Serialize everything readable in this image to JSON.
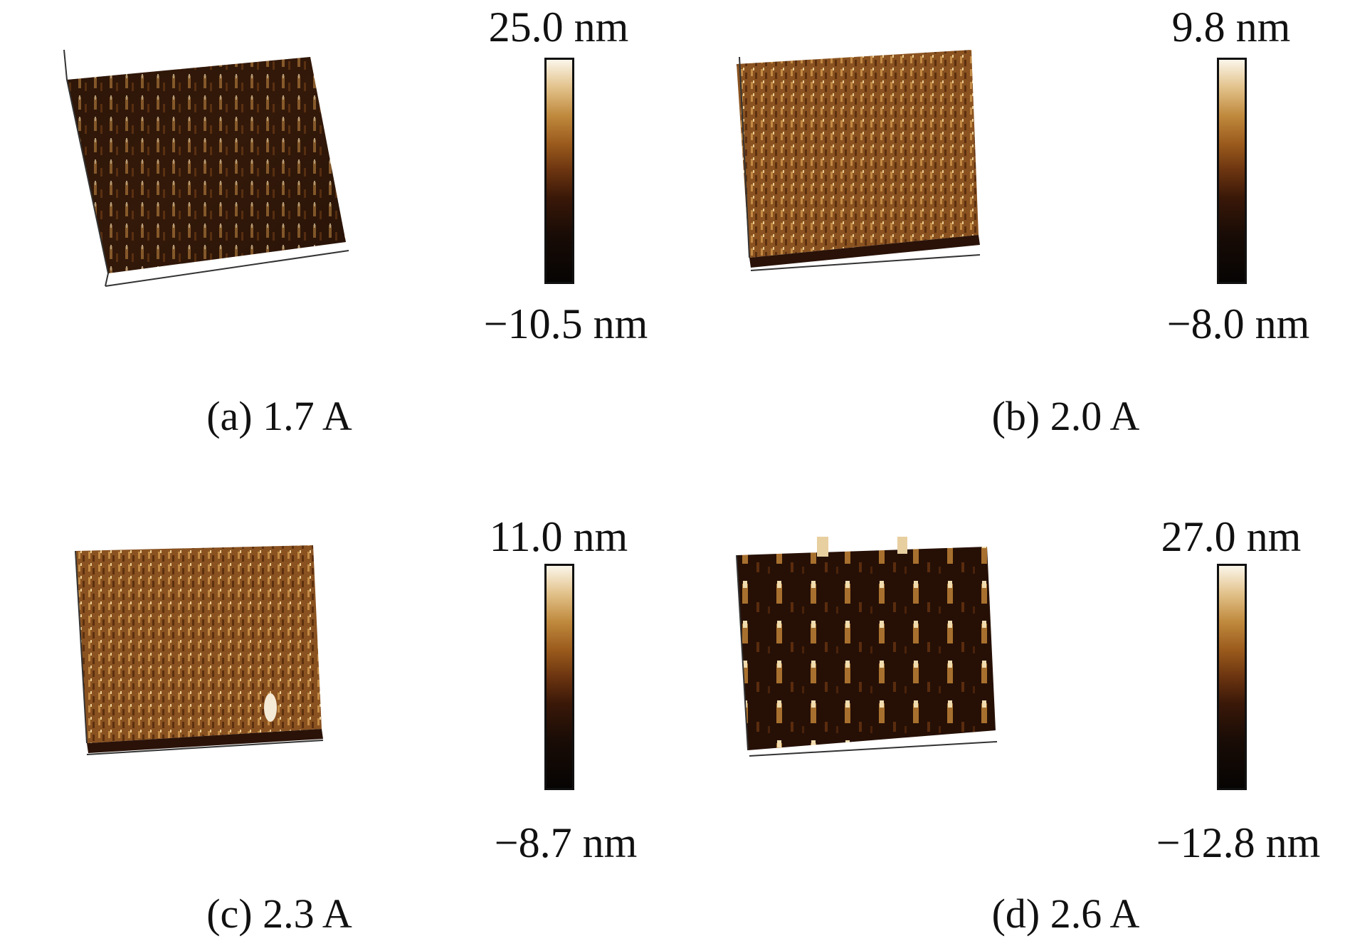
{
  "figure": {
    "panels": [
      {
        "id": "a",
        "caption": "(a) 1.7 A",
        "scale_max": "25.0 nm",
        "scale_min": "−10.5 nm",
        "palette": "dark",
        "peak_density": "high"
      },
      {
        "id": "b",
        "caption": "(b) 2.0 A",
        "scale_max": "9.8 nm",
        "scale_min": "−8.0 nm",
        "palette": "bright",
        "peak_density": "dense-fine"
      },
      {
        "id": "c",
        "caption": "(c) 2.3 A",
        "scale_max": "11.0 nm",
        "scale_min": "−8.7 nm",
        "palette": "bright",
        "peak_density": "dense-fine"
      },
      {
        "id": "d",
        "caption": "(d) 2.6 A",
        "scale_max": "27.0 nm",
        "scale_min": "−12.8 nm",
        "palette": "dark",
        "peak_density": "sparse-tall"
      }
    ]
  }
}
